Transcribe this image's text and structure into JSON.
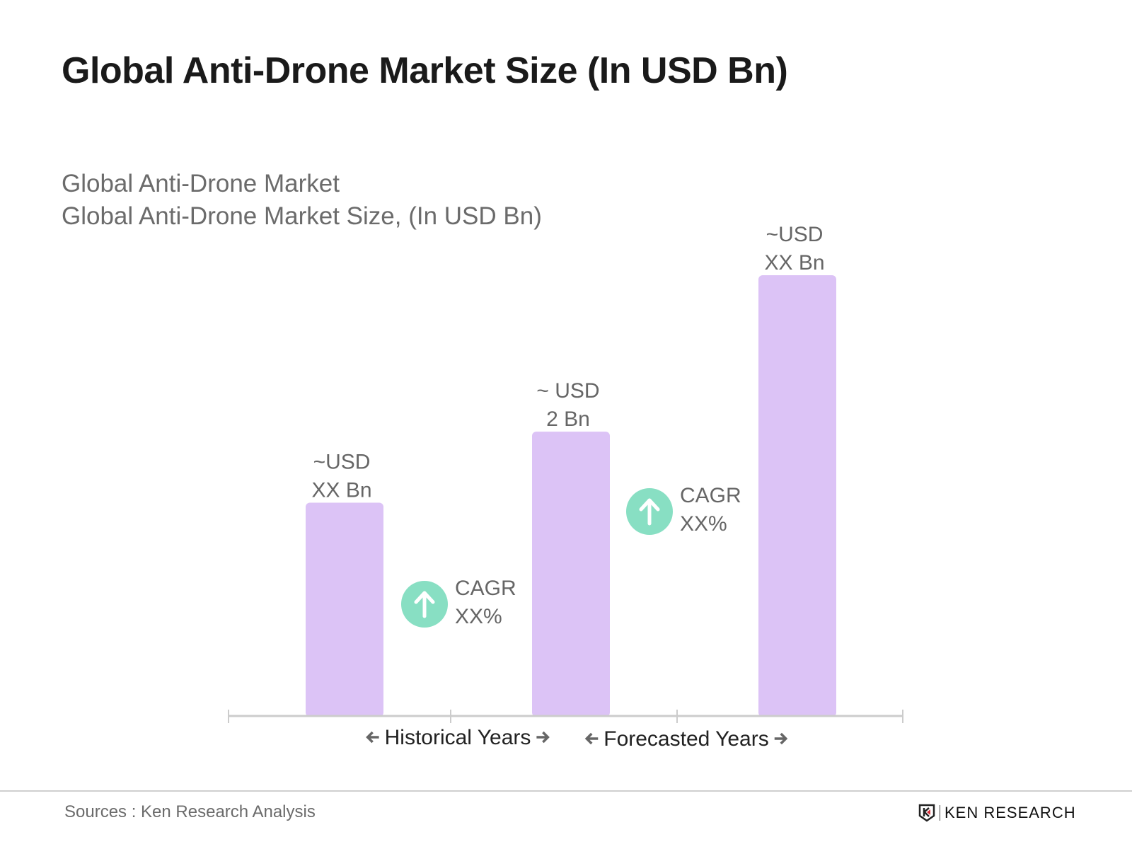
{
  "title": "Global Anti-Drone Market Size (In USD Bn)",
  "subtitle_lines": [
    "Global Anti-Drone Market",
    "Global Anti-Drone Market Size, (In USD Bn)"
  ],
  "chart_data": {
    "type": "bar",
    "title": "Global Anti-Drone Market Size (In USD Bn)",
    "values": [
      1.5,
      2,
      3.1
    ],
    "data_labels": [
      [
        "~USD",
        "XX Bn"
      ],
      [
        "~ USD",
        "2 Bn"
      ],
      [
        "~USD",
        "XX Bn"
      ]
    ],
    "annotations": [
      {
        "icon": "arrow-up-circle-icon",
        "lines": [
          "CAGR",
          "XX%"
        ]
      },
      {
        "icon": "arrow-up-circle-icon",
        "lines": [
          "CAGR",
          "XX%"
        ]
      }
    ],
    "period_labels": [
      "Historical Years",
      "Forecasted Years"
    ],
    "ylim": [
      0,
      3.2
    ],
    "grid": false,
    "colors": {
      "bar": "#dcc3f6",
      "cagr_circle": "#88dfc3",
      "axis": "#cccccc",
      "text": "#666666"
    }
  },
  "footer": {
    "source": "Sources : Ken Research Analysis",
    "logo_text": "KEN RESEARCH"
  }
}
